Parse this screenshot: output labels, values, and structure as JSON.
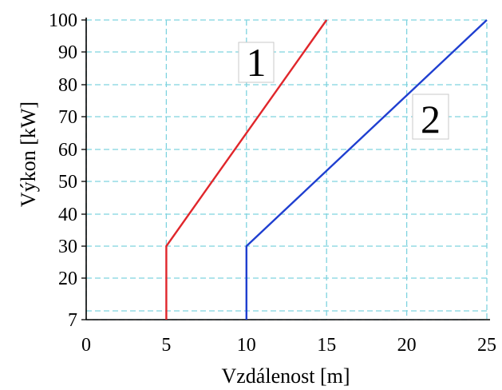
{
  "chart_data": {
    "type": "line",
    "xlabel": "Vzdálenost [m]",
    "ylabel": "Výkon [kW]",
    "xlim": [
      0,
      25
    ],
    "ylim": [
      7,
      100
    ],
    "x_ticks": [
      "0",
      "5",
      "10",
      "15",
      "20",
      "25"
    ],
    "y_ticks": [
      "7",
      "20",
      "30",
      "40",
      "50",
      "60",
      "70",
      "80",
      "90",
      "100"
    ],
    "grid": true,
    "series": [
      {
        "name": "1",
        "color": "#e0262b",
        "points": [
          [
            5,
            7
          ],
          [
            5,
            30
          ],
          [
            15,
            100
          ]
        ]
      },
      {
        "name": "2",
        "color": "#1f3fd0",
        "points": [
          [
            10,
            7
          ],
          [
            10,
            30
          ],
          [
            25,
            100
          ]
        ]
      }
    ],
    "colors": {
      "grid": "#7fd3df",
      "axis": "#000000"
    }
  }
}
